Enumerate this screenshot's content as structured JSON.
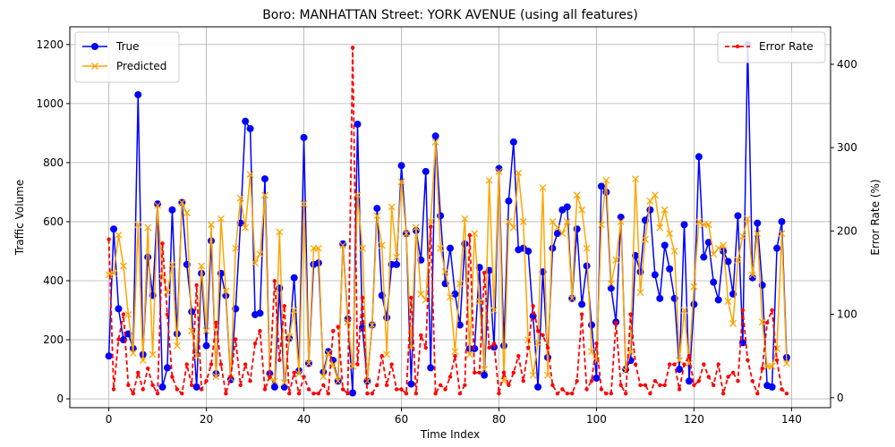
{
  "chart_data": {
    "type": "line",
    "title": "Boro: MANHATTAN Street: YORK AVENUE (using all features)",
    "xlabel": "Time Index",
    "ylabel": "Traffic Volume",
    "ylabel_right": "Error Rate (%)",
    "xlim": [
      -8,
      148
    ],
    "ylim": [
      -30,
      1260
    ],
    "ylim_right": [
      -12,
      445
    ],
    "xticks": [
      0,
      20,
      40,
      60,
      80,
      100,
      120,
      140
    ],
    "yticks": [
      0,
      200,
      400,
      600,
      800,
      1000,
      1200
    ],
    "yticks_right": [
      0,
      100,
      200,
      300,
      400
    ],
    "grid": true,
    "legend_left": "upper-left",
    "legend_right": "upper-right",
    "series": [
      {
        "name": "True",
        "axis": "left",
        "color": "#0000ff",
        "marker": "circle",
        "linestyle": "solid",
        "values": [
          145,
          575,
          305,
          200,
          220,
          170,
          1030,
          150,
          480,
          350,
          660,
          40,
          105,
          640,
          220,
          665,
          455,
          295,
          40,
          425,
          180,
          535,
          85,
          425,
          350,
          65,
          305,
          595,
          940,
          915,
          285,
          290,
          745,
          85,
          40,
          375,
          40,
          205,
          410,
          95,
          885,
          120,
          455,
          460,
          90,
          160,
          130,
          60,
          525,
          270,
          20,
          930,
          240,
          60,
          250,
          645,
          350,
          275,
          455,
          455,
          790,
          560,
          50,
          570,
          470,
          770,
          105,
          890,
          620,
          390,
          510,
          355,
          250,
          525,
          170,
          170,
          445,
          80,
          435,
          175,
          780,
          180,
          670,
          870,
          505,
          510,
          500,
          280,
          40,
          430,
          140,
          510,
          560,
          640,
          650,
          340,
          575,
          320,
          450,
          250,
          70,
          720,
          700,
          375,
          260,
          615,
          100,
          130,
          485,
          430,
          605,
          640,
          420,
          340,
          520,
          440,
          340,
          100,
          590,
          60,
          320,
          820,
          480,
          530,
          395,
          335,
          500,
          465,
          355,
          620,
          190,
          1200,
          410,
          595,
          385,
          45,
          40,
          510,
          600,
          140
        ]
      },
      {
        "name": "Predicted",
        "axis": "left",
        "color": "#ffa500",
        "marker": "x",
        "linestyle": "solid",
        "values": [
          420,
          425,
          555,
          450,
          285,
          155,
          590,
          130,
          580,
          150,
          655,
          415,
          360,
          455,
          180,
          665,
          630,
          230,
          145,
          450,
          230,
          590,
          75,
          610,
          365,
          70,
          510,
          680,
          580,
          760,
          460,
          490,
          690,
          70,
          60,
          565,
          55,
          210,
          300,
          85,
          660,
          120,
          510,
          510,
          75,
          155,
          115,
          60,
          520,
          260,
          110,
          690,
          510,
          60,
          250,
          620,
          520,
          150,
          650,
          480,
          735,
          560,
          175,
          580,
          355,
          335,
          600,
          870,
          510,
          430,
          345,
          160,
          390,
          610,
          150,
          560,
          330,
          100,
          740,
          300,
          770,
          60,
          600,
          580,
          765,
          600,
          200,
          80,
          190,
          715,
          80,
          600,
          580,
          560,
          600,
          340,
          690,
          640,
          510,
          160,
          130,
          590,
          740,
          390,
          470,
          600,
          95,
          160,
          745,
          360,
          540,
          670,
          690,
          580,
          640,
          560,
          500,
          130,
          300,
          120,
          380,
          600,
          590,
          590,
          490,
          510,
          520,
          330,
          255,
          470,
          550,
          610,
          420,
          560,
          260,
          110,
          110,
          170,
          560,
          120
        ]
      },
      {
        "name": "Error Rate",
        "axis": "right",
        "color": "#ff0000",
        "marker": "dot",
        "linestyle": "dashed",
        "values": [
          190,
          10,
          70,
          100,
          15,
          5,
          30,
          10,
          35,
          15,
          5,
          185,
          100,
          25,
          10,
          5,
          40,
          15,
          135,
          10,
          20,
          40,
          90,
          40,
          5,
          25,
          70,
          15,
          40,
          20,
          65,
          80,
          10,
          25,
          140,
          45,
          110,
          5,
          30,
          5,
          25,
          10,
          5,
          5,
          15,
          5,
          80,
          85,
          10,
          5,
          420,
          40,
          120,
          5,
          5,
          15,
          50,
          15,
          40,
          10,
          10,
          5,
          120,
          5,
          75,
          60,
          205,
          5,
          15,
          10,
          25,
          50,
          5,
          15,
          195,
          30,
          30,
          150,
          60,
          65,
          5,
          30,
          15,
          30,
          50,
          20,
          60,
          110,
          80,
          75,
          60,
          15,
          5,
          10,
          5,
          5,
          20,
          100,
          10,
          20,
          65,
          10,
          5,
          5,
          90,
          15,
          5,
          100,
          40,
          15,
          15,
          5,
          20,
          15,
          15,
          40,
          40,
          10,
          40,
          50,
          15,
          20,
          40,
          25,
          15,
          40,
          5,
          25,
          30,
          20,
          105,
          45,
          20,
          5,
          35,
          90,
          105,
          45,
          10,
          5
        ]
      }
    ]
  }
}
